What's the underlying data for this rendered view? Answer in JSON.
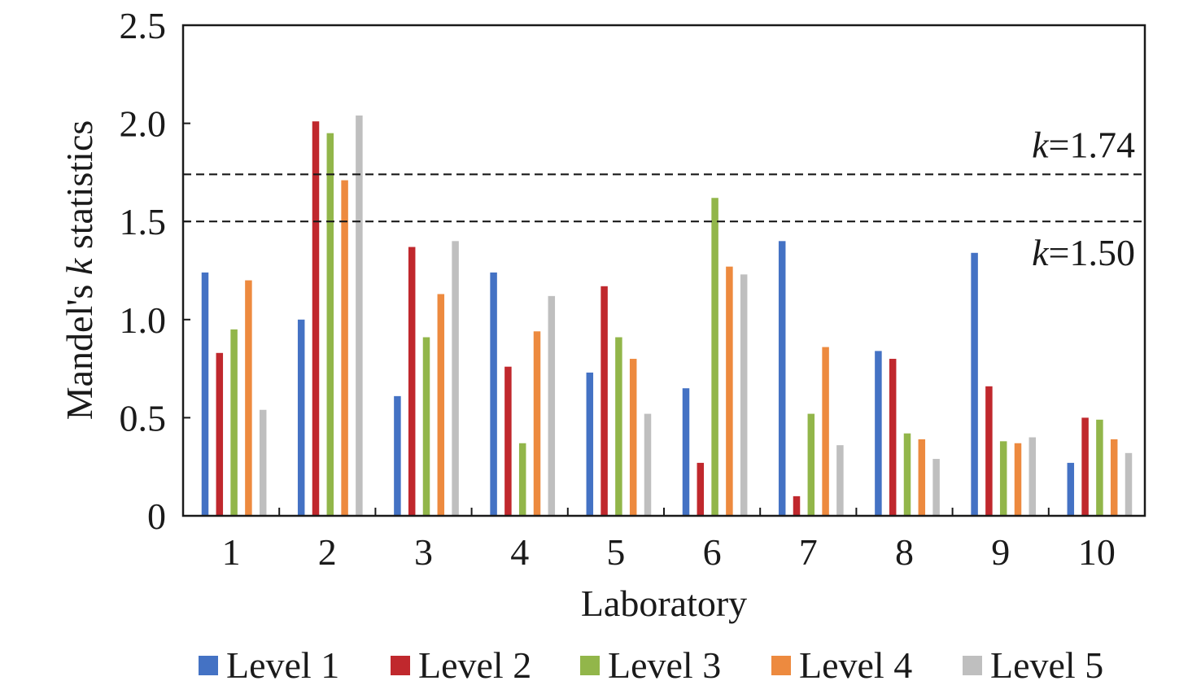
{
  "chart_data": {
    "type": "bar",
    "title": "",
    "xlabel": "Laboratory",
    "ylabel": "Mandel's k statistics",
    "ylabel_parts": [
      "Mandel's ",
      "k",
      " statistics"
    ],
    "ylim": [
      0,
      2.5
    ],
    "yticks": [
      0,
      0.5,
      1.0,
      1.5,
      2.0,
      2.5
    ],
    "ytick_labels": [
      "0",
      "0.5",
      "1.0",
      "1.5",
      "2.0",
      "2.5"
    ],
    "categories": [
      "1",
      "2",
      "3",
      "4",
      "5",
      "6",
      "7",
      "8",
      "9",
      "10"
    ],
    "grid": false,
    "legend_position": "bottom",
    "series": [
      {
        "name": "Level 1",
        "color": "#4472C4",
        "values": [
          1.24,
          1.0,
          0.61,
          1.24,
          0.73,
          0.65,
          1.4,
          0.84,
          1.34,
          0.27
        ]
      },
      {
        "name": "Level 2",
        "color": "#C0282D",
        "values": [
          0.83,
          2.01,
          1.37,
          0.76,
          1.17,
          0.27,
          0.1,
          0.8,
          0.66,
          0.5
        ]
      },
      {
        "name": "Level 3",
        "color": "#92B64A",
        "values": [
          0.95,
          1.95,
          0.91,
          0.37,
          0.91,
          1.62,
          0.52,
          0.42,
          0.38,
          0.49
        ]
      },
      {
        "name": "Level 4",
        "color": "#ED8A3F",
        "values": [
          1.2,
          1.71,
          1.13,
          0.94,
          0.8,
          1.27,
          0.86,
          0.39,
          0.37,
          0.39
        ]
      },
      {
        "name": "Level 5",
        "color": "#BFBFBF",
        "values": [
          0.54,
          2.04,
          1.4,
          1.12,
          0.52,
          1.23,
          0.36,
          0.29,
          0.4,
          0.32
        ]
      }
    ],
    "reference_lines": [
      {
        "value": 1.74,
        "label_var": "k",
        "label_rest": "=1.74",
        "style": "dashed",
        "label_position": "above"
      },
      {
        "value": 1.5,
        "label_var": "k",
        "label_rest": "=1.50",
        "style": "dashed",
        "label_position": "below"
      }
    ]
  }
}
